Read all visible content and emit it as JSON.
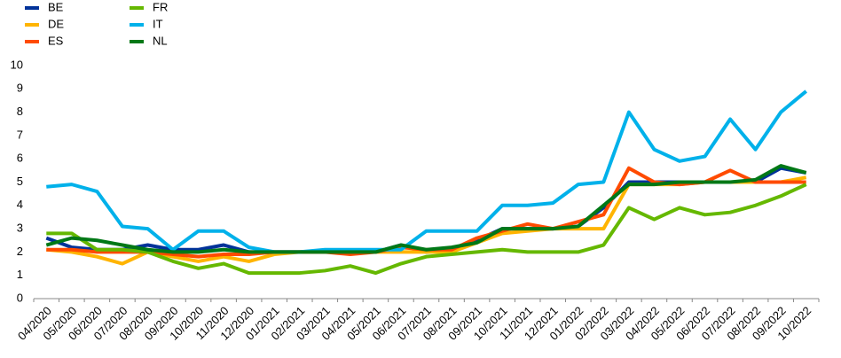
{
  "chart_data": {
    "type": "line",
    "categories": [
      "04/2020",
      "05/2020",
      "06/2020",
      "07/2020",
      "08/2020",
      "09/2020",
      "10/2020",
      "11/2020",
      "12/2020",
      "01/2021",
      "02/2021",
      "03/2021",
      "04/2021",
      "05/2021",
      "06/2021",
      "07/2021",
      "08/2021",
      "09/2021",
      "10/2021",
      "11/2021",
      "12/2021",
      "01/2022",
      "02/2022",
      "03/2022",
      "04/2022",
      "05/2022",
      "06/2022",
      "07/2022",
      "08/2022",
      "09/2022",
      "10/2022"
    ],
    "series": [
      {
        "name": "BE",
        "color": "#003299",
        "values": [
          2.6,
          2.2,
          2.1,
          2.1,
          2.3,
          2.1,
          2.1,
          2.3,
          2.0,
          2.0,
          2.0,
          2.0,
          2.0,
          2.0,
          2.3,
          2.0,
          2.1,
          2.5,
          3.0,
          3.0,
          3.0,
          3.1,
          3.9,
          5.0,
          5.0,
          5.0,
          5.0,
          5.0,
          5.0,
          5.6,
          5.4
        ]
      },
      {
        "name": "DE",
        "color": "#ffb400",
        "values": [
          2.1,
          2.0,
          1.8,
          1.5,
          2.0,
          1.8,
          1.6,
          1.8,
          1.6,
          1.9,
          2.0,
          2.0,
          2.0,
          2.0,
          2.0,
          2.0,
          2.0,
          2.4,
          2.8,
          2.9,
          3.0,
          3.0,
          3.0,
          4.9,
          4.9,
          4.9,
          5.0,
          5.0,
          5.0,
          5.0,
          5.2
        ]
      },
      {
        "name": "ES",
        "color": "#ff4b00",
        "values": [
          2.1,
          2.1,
          2.0,
          2.0,
          2.0,
          1.9,
          1.8,
          1.9,
          1.9,
          2.0,
          2.0,
          2.0,
          1.9,
          2.0,
          2.2,
          2.1,
          2.1,
          2.6,
          2.9,
          3.2,
          3.0,
          3.3,
          3.6,
          5.6,
          5.0,
          4.9,
          5.0,
          5.5,
          5.0,
          5.0,
          5.0
        ]
      },
      {
        "name": "FR",
        "color": "#65b800",
        "values": [
          2.8,
          2.8,
          2.1,
          2.1,
          2.0,
          1.6,
          1.3,
          1.5,
          1.1,
          1.1,
          1.1,
          1.2,
          1.4,
          1.1,
          1.5,
          1.8,
          1.9,
          2.0,
          2.1,
          2.0,
          2.0,
          2.0,
          2.3,
          3.9,
          3.4,
          3.9,
          3.6,
          3.7,
          4.0,
          4.4,
          4.9
        ]
      },
      {
        "name": "IT",
        "color": "#00b1ea",
        "values": [
          4.8,
          4.9,
          4.6,
          3.1,
          3.0,
          2.1,
          2.9,
          2.9,
          2.2,
          2.0,
          2.0,
          2.1,
          2.1,
          2.1,
          2.1,
          2.9,
          2.9,
          2.9,
          4.0,
          4.0,
          4.1,
          4.9,
          5.0,
          8.0,
          6.4,
          5.9,
          6.1,
          7.7,
          6.4,
          8.0,
          8.9
        ]
      },
      {
        "name": "NL",
        "color": "#007816",
        "values": [
          2.3,
          2.6,
          2.5,
          2.3,
          2.1,
          2.0,
          2.0,
          2.1,
          2.0,
          2.0,
          2.0,
          2.0,
          2.0,
          2.0,
          2.3,
          2.1,
          2.2,
          2.4,
          3.0,
          3.0,
          3.0,
          3.1,
          4.0,
          4.9,
          4.9,
          5.0,
          5.0,
          5.0,
          5.1,
          5.7,
          5.4
        ]
      }
    ],
    "ylim": [
      0,
      10
    ],
    "yticks": [
      0,
      1,
      2,
      3,
      4,
      5,
      6,
      7,
      8,
      9,
      10
    ],
    "grid": false,
    "legend": "top-left"
  }
}
